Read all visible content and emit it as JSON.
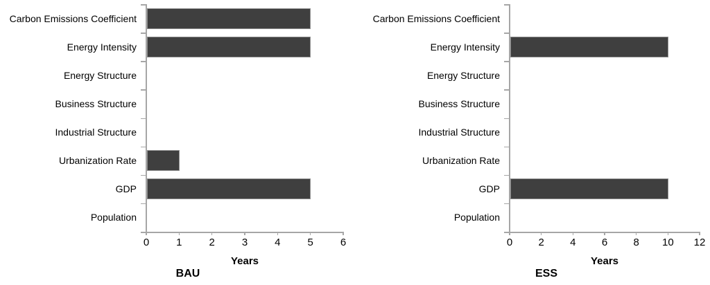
{
  "colors": {
    "bar": "#3f3f3f",
    "bar_border": "#8c8c8c",
    "axis": "#a6a6a6",
    "text": "#000000"
  },
  "chart_data": [
    {
      "type": "bar",
      "orientation": "horizontal",
      "title": "BAU",
      "xlabel": "Years",
      "categories": [
        "Carbon Emissions Coefficient",
        "Energy Intensity",
        "Energy Structure",
        "Business Structure",
        "Industrial Structure",
        "Urbanization Rate",
        "GDP",
        "Population"
      ],
      "values": [
        5,
        5,
        0,
        0,
        0,
        1,
        5,
        0
      ],
      "xlim": [
        0,
        6
      ],
      "xticks": [
        0,
        1,
        2,
        3,
        4,
        5,
        6
      ],
      "grid": false,
      "legend": false
    },
    {
      "type": "bar",
      "orientation": "horizontal",
      "title": "ESS",
      "xlabel": "Years",
      "categories": [
        "Carbon Emissions Coefficient",
        "Energy Intensity",
        "Energy Structure",
        "Business Structure",
        "Industrial Structure",
        "Urbanization Rate",
        "GDP",
        "Population"
      ],
      "values": [
        0,
        10,
        0,
        0,
        0,
        0,
        10,
        0
      ],
      "xlim": [
        0,
        12
      ],
      "xticks": [
        0,
        2,
        4,
        6,
        8,
        10,
        12
      ],
      "grid": false,
      "legend": false
    }
  ]
}
